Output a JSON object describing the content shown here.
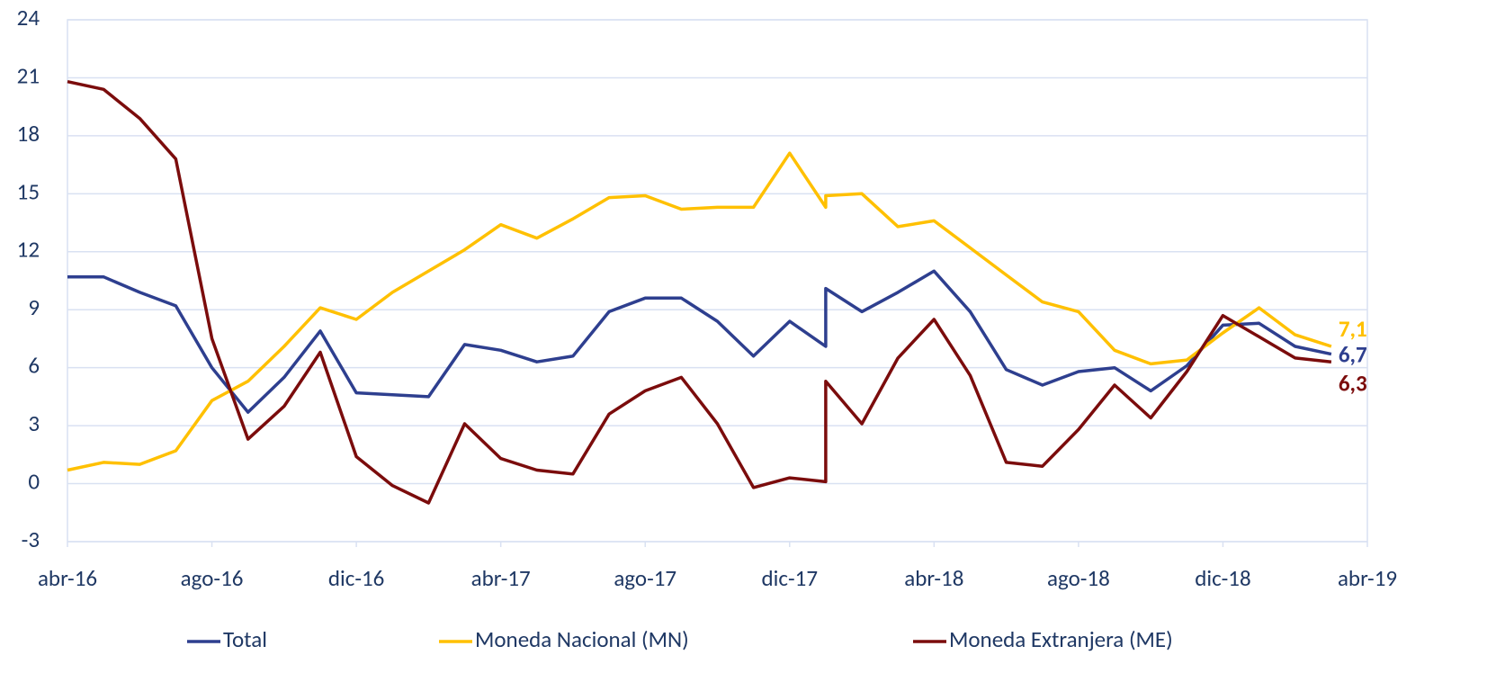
{
  "chart_data": {
    "type": "line",
    "x": [
      "2016-04",
      "2016-05",
      "2016-06",
      "2016-07",
      "2016-08",
      "2016-09",
      "2016-10",
      "2016-11",
      "2016-12",
      "2017-01",
      "2017-02",
      "2017-03",
      "2017-04",
      "2017-05",
      "2017-06",
      "2017-07",
      "2017-08",
      "2017-09",
      "2017-10",
      "2017-11",
      "2017-12",
      "2018-01",
      "2018-01",
      "2018-02",
      "2018-03",
      "2018-04",
      "2018-05",
      "2018-06",
      "2018-07",
      "2018-08",
      "2018-09",
      "2018-10",
      "2018-11",
      "2018-12",
      "2019-01",
      "2019-02",
      "2019-03"
    ],
    "series": [
      {
        "name": "Total",
        "color": "#2e3f8f",
        "values": [
          10.7,
          10.7,
          9.9,
          9.2,
          6.0,
          3.7,
          5.5,
          7.9,
          4.7,
          4.6,
          4.5,
          7.2,
          6.9,
          6.3,
          6.6,
          8.9,
          9.6,
          9.6,
          8.4,
          6.6,
          8.4,
          7.1,
          10.1,
          8.9,
          9.9,
          11.0,
          8.9,
          5.9,
          5.1,
          5.8,
          6.0,
          4.8,
          6.1,
          8.2,
          8.3,
          7.1,
          6.7
        ],
        "value_labels": [
          null,
          null,
          null,
          null,
          null,
          null,
          null,
          null,
          null,
          null,
          null,
          null,
          null,
          null,
          null,
          null,
          null,
          null,
          null,
          null,
          null,
          null,
          null,
          null,
          null,
          null,
          null,
          null,
          null,
          null,
          null,
          null,
          null,
          null,
          null,
          null,
          "6,7"
        ]
      },
      {
        "name": "Moneda Nacional (MN)",
        "color": "#ffc000",
        "values": [
          0.7,
          1.1,
          1.0,
          1.7,
          4.3,
          5.3,
          7.1,
          9.1,
          8.5,
          9.9,
          11.0,
          12.1,
          13.4,
          12.7,
          13.7,
          14.8,
          14.9,
          14.2,
          14.3,
          14.3,
          17.1,
          14.3,
          14.9,
          15.0,
          13.3,
          13.6,
          12.2,
          10.8,
          9.4,
          8.9,
          6.9,
          6.2,
          6.4,
          7.8,
          9.1,
          7.7,
          7.1
        ],
        "value_labels": [
          null,
          null,
          null,
          null,
          null,
          null,
          null,
          null,
          null,
          null,
          null,
          null,
          null,
          null,
          null,
          null,
          null,
          null,
          null,
          null,
          null,
          null,
          null,
          null,
          null,
          null,
          null,
          null,
          null,
          null,
          null,
          null,
          null,
          null,
          null,
          null,
          "7,1"
        ]
      },
      {
        "name": "Moneda Extranjera (ME)",
        "color": "#7b0c0c",
        "values": [
          20.8,
          20.4,
          18.9,
          16.8,
          7.5,
          2.3,
          4.0,
          6.8,
          1.4,
          -0.1,
          -1.0,
          3.1,
          1.3,
          0.7,
          0.5,
          3.6,
          4.8,
          5.5,
          3.1,
          -0.2,
          0.3,
          0.1,
          5.3,
          3.1,
          6.5,
          8.5,
          5.6,
          1.1,
          0.9,
          2.8,
          5.1,
          3.4,
          5.8,
          8.7,
          7.6,
          6.5,
          6.3
        ],
        "value_labels": [
          null,
          null,
          null,
          null,
          null,
          null,
          null,
          null,
          null,
          null,
          null,
          null,
          null,
          null,
          null,
          null,
          null,
          null,
          null,
          null,
          null,
          null,
          null,
          null,
          null,
          null,
          null,
          null,
          null,
          null,
          null,
          null,
          null,
          null,
          null,
          null,
          "6,3"
        ]
      }
    ],
    "xlim": [
      "2016-04",
      "2019-04"
    ],
    "xticks": [
      {
        "value": "2016-04",
        "label": "abr-16"
      },
      {
        "value": "2016-08",
        "label": "ago-16"
      },
      {
        "value": "2016-12",
        "label": "dic-16"
      },
      {
        "value": "2017-04",
        "label": "abr-17"
      },
      {
        "value": "2017-08",
        "label": "ago-17"
      },
      {
        "value": "2017-12",
        "label": "dic-17"
      },
      {
        "value": "2018-04",
        "label": "abr-18"
      },
      {
        "value": "2018-08",
        "label": "ago-18"
      },
      {
        "value": "2018-12",
        "label": "dic-18"
      },
      {
        "value": "2019-04",
        "label": "abr-19"
      }
    ],
    "ylim": [
      -3,
      24
    ],
    "yticks": [
      -3,
      0,
      3,
      6,
      9,
      12,
      15,
      18,
      21,
      24
    ],
    "grid": true,
    "legend": "bottom"
  }
}
